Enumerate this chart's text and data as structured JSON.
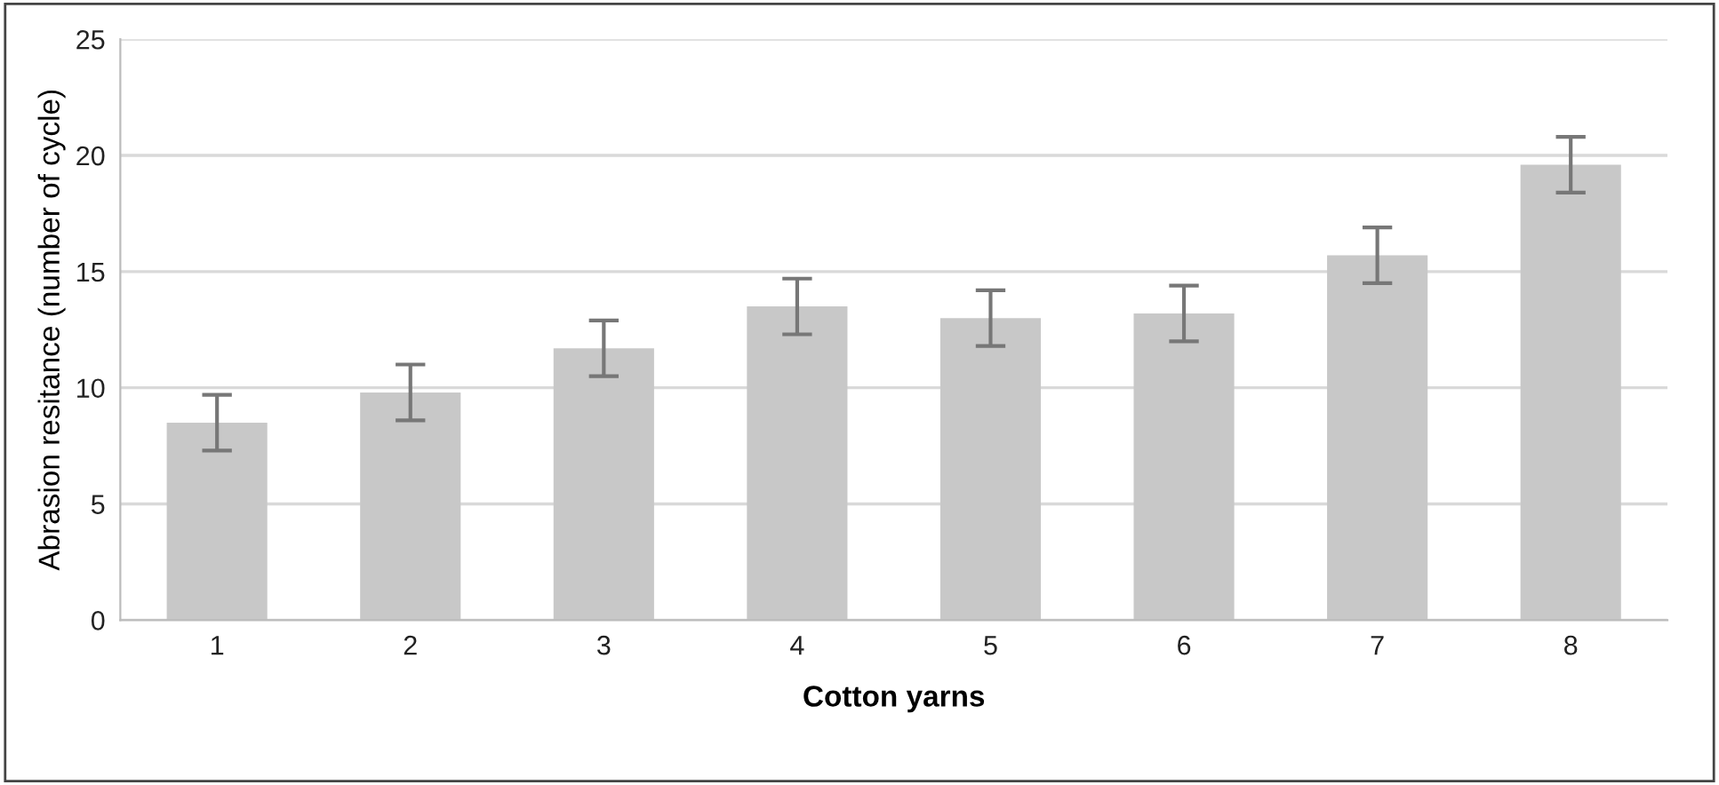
{
  "chart_data": {
    "type": "bar",
    "xlabel": "Cotton yarns",
    "ylabel": "Abrasion resitance (number of cycle)",
    "categories": [
      "1",
      "2",
      "3",
      "4",
      "5",
      "6",
      "7",
      "8"
    ],
    "values": [
      8.5,
      9.8,
      11.7,
      13.5,
      13.0,
      13.2,
      15.7,
      19.6
    ],
    "errors": [
      1.2,
      1.2,
      1.2,
      1.2,
      1.2,
      1.2,
      1.2,
      1.2
    ],
    "color": "#c8c8c8",
    "ylim": [
      0,
      25
    ],
    "yticks": [
      0,
      5,
      10,
      15,
      20,
      25
    ],
    "grid": "y"
  }
}
